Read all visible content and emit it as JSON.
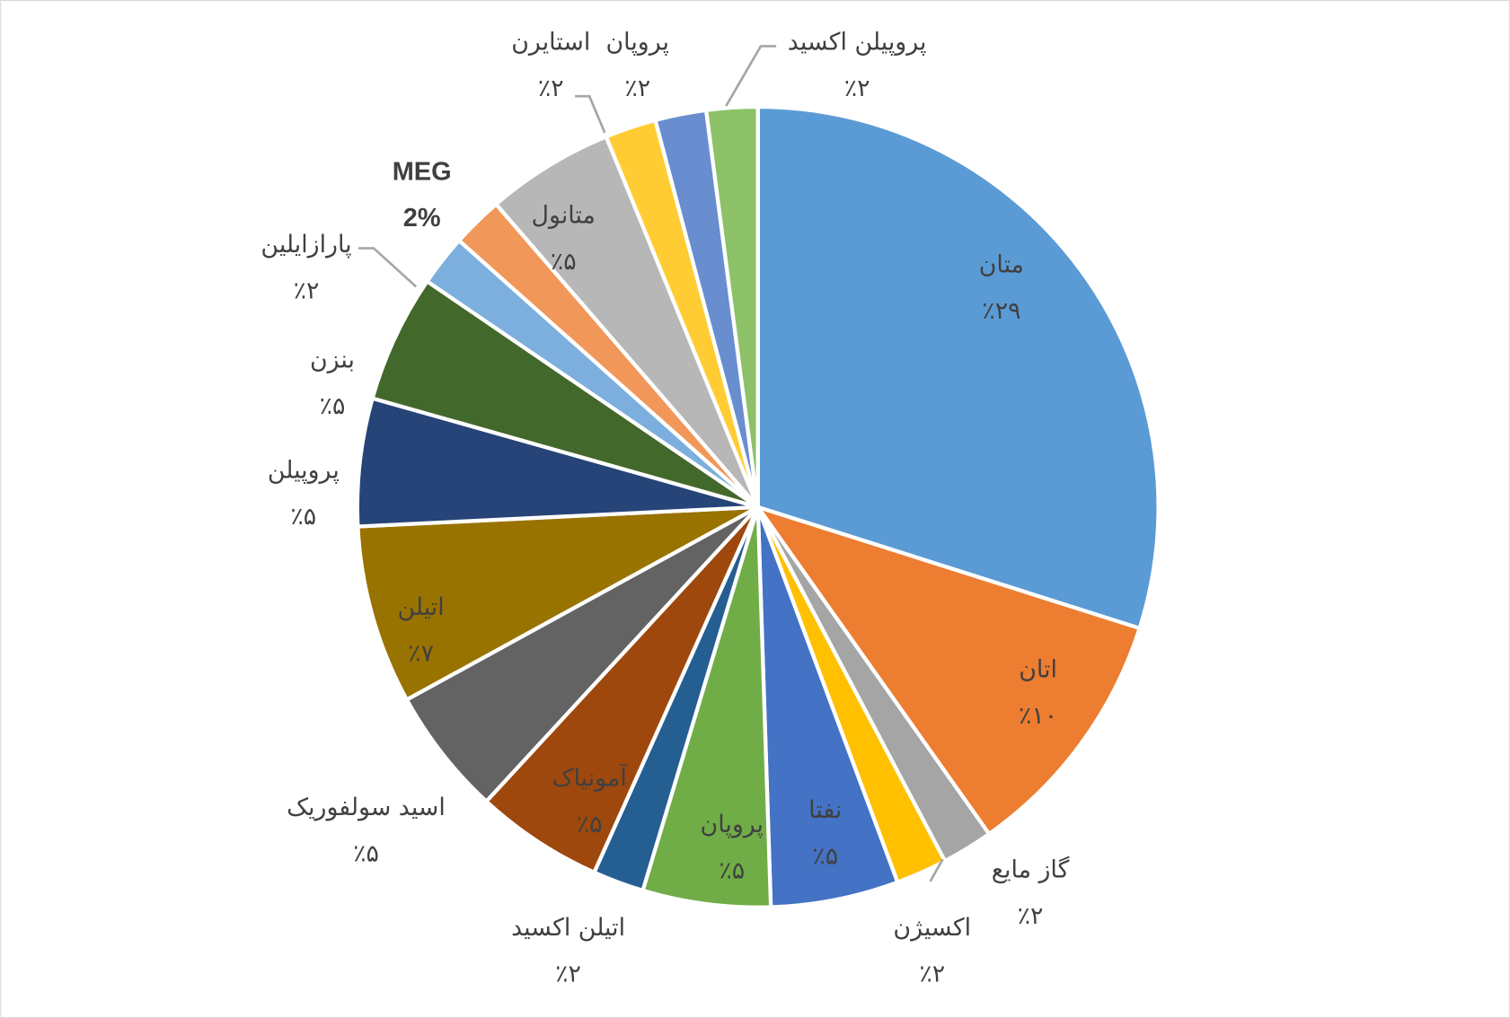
{
  "chart_data": {
    "type": "pie",
    "categories": [
      "متان",
      "اتان",
      "گاز مایع",
      "اکسیژن",
      "نفتا",
      "پروپان",
      "اتیلن اکسید",
      "آمونیاک",
      "اسید سولفوریک",
      "اتیلن",
      "پروپیلن",
      "بنزن",
      "پارازایلین",
      "MEG",
      "متانول",
      "استایرن",
      "پروپان",
      "پروپیلن اکسید"
    ],
    "values": [
      29,
      10,
      2,
      2,
      5,
      5,
      2,
      5,
      5,
      7,
      5,
      5,
      2,
      2,
      5,
      2,
      2,
      2
    ],
    "value_labels": [
      "٪۲۹",
      "٪۱۰",
      "٪۲",
      "٪۲",
      "٪۵",
      "٪۵",
      "٪۲",
      "٪۵",
      "٪۵",
      "٪۷",
      "٪۵",
      "٪۵",
      "٪۲",
      "2%",
      "٪۵",
      "٪۲",
      "٪۲",
      "٪۲"
    ],
    "colors": [
      "#5b9bd5",
      "#ed7d31",
      "#a5a5a5",
      "#ffc000",
      "#4472c4",
      "#70ad47",
      "#255e91",
      "#9e480e",
      "#636363",
      "#997300",
      "#264478",
      "#43682b",
      "#7cafdd",
      "#f1975a",
      "#b7b7b7",
      "#ffcd33",
      "#698ed0",
      "#8cc168"
    ]
  }
}
